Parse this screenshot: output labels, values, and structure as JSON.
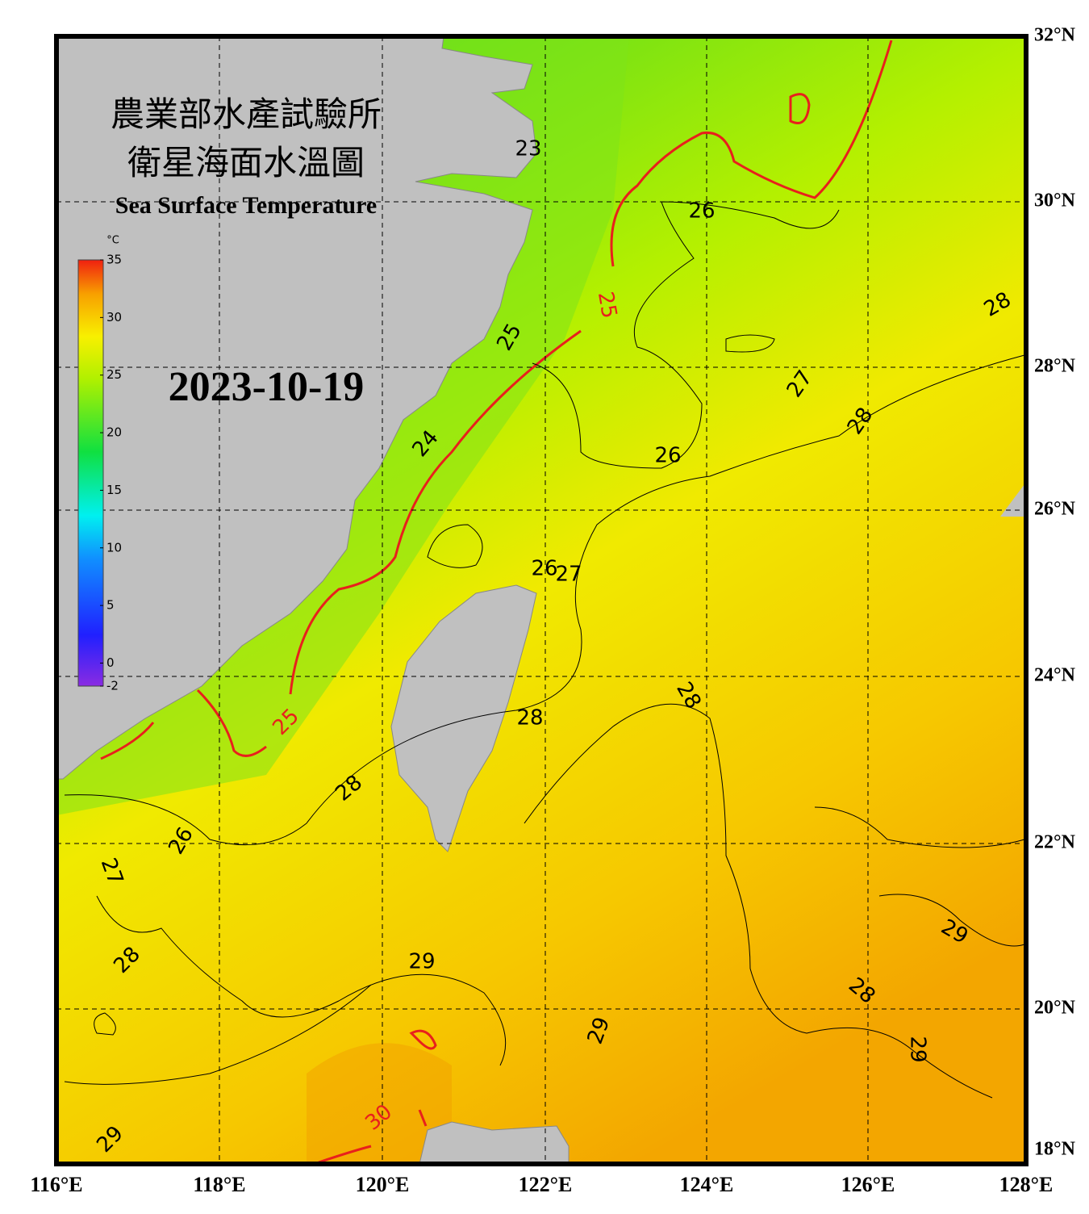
{
  "header": {
    "title_zh": "農業部水產試驗所",
    "subtitle_zh": "衛星海面水溫圖",
    "title_en": "Sea Surface Temperature",
    "date": "2023-10-19"
  },
  "colorbar": {
    "unit": "°C",
    "range": [
      -2,
      35
    ],
    "ticks": [
      35,
      30,
      25,
      20,
      15,
      10,
      5,
      0,
      -2
    ]
  },
  "lat_labels": [
    "32°N",
    "30°N",
    "28°N",
    "26°N",
    "24°N",
    "22°N",
    "20°N",
    "18°N"
  ],
  "lon_labels": [
    "116°E",
    "118°E",
    "120°E",
    "122°E",
    "124°E",
    "126°E",
    "128°E"
  ],
  "contour_labels": [
    23,
    26,
    25,
    28,
    25,
    27,
    28,
    24,
    26,
    26,
    27,
    28,
    25,
    28,
    28,
    26,
    27,
    28,
    29,
    29,
    28,
    29,
    29,
    30,
    29
  ]
}
